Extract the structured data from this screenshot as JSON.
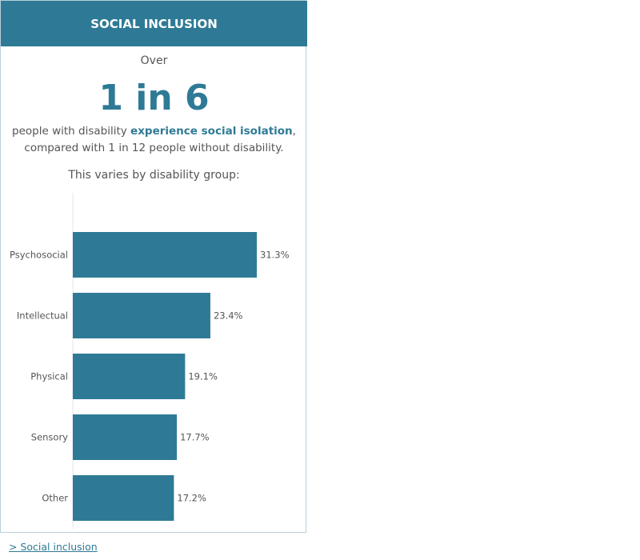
{
  "card": {
    "header": "SOCIAL INCLUSION",
    "over": "Over",
    "big_stat": "1 in 6",
    "desc_pre": "people with disability ",
    "desc_highlight": "experience social isolation",
    "desc_post": ",",
    "desc_line2": "compared with 1 in 12 people without disability.",
    "varies": "This varies by disability group:"
  },
  "link": {
    "label": "Social inclusion",
    "prefix": ">"
  },
  "colors": {
    "accent": "#2e7a96",
    "bar": "#2e7a96",
    "text": "#555555",
    "border": "#b9cfdb"
  },
  "chart_data": {
    "type": "bar",
    "orientation": "horizontal",
    "categories": [
      "Psychosocial",
      "Intellectual",
      "Physical",
      "Sensory",
      "Other"
    ],
    "values": [
      31.3,
      23.4,
      19.1,
      17.7,
      17.2
    ],
    "value_labels": [
      "31.3%",
      "23.4%",
      "19.1%",
      "17.7%",
      "17.2%"
    ],
    "unit": "%",
    "xlim": [
      0,
      40
    ],
    "grid": false
  }
}
